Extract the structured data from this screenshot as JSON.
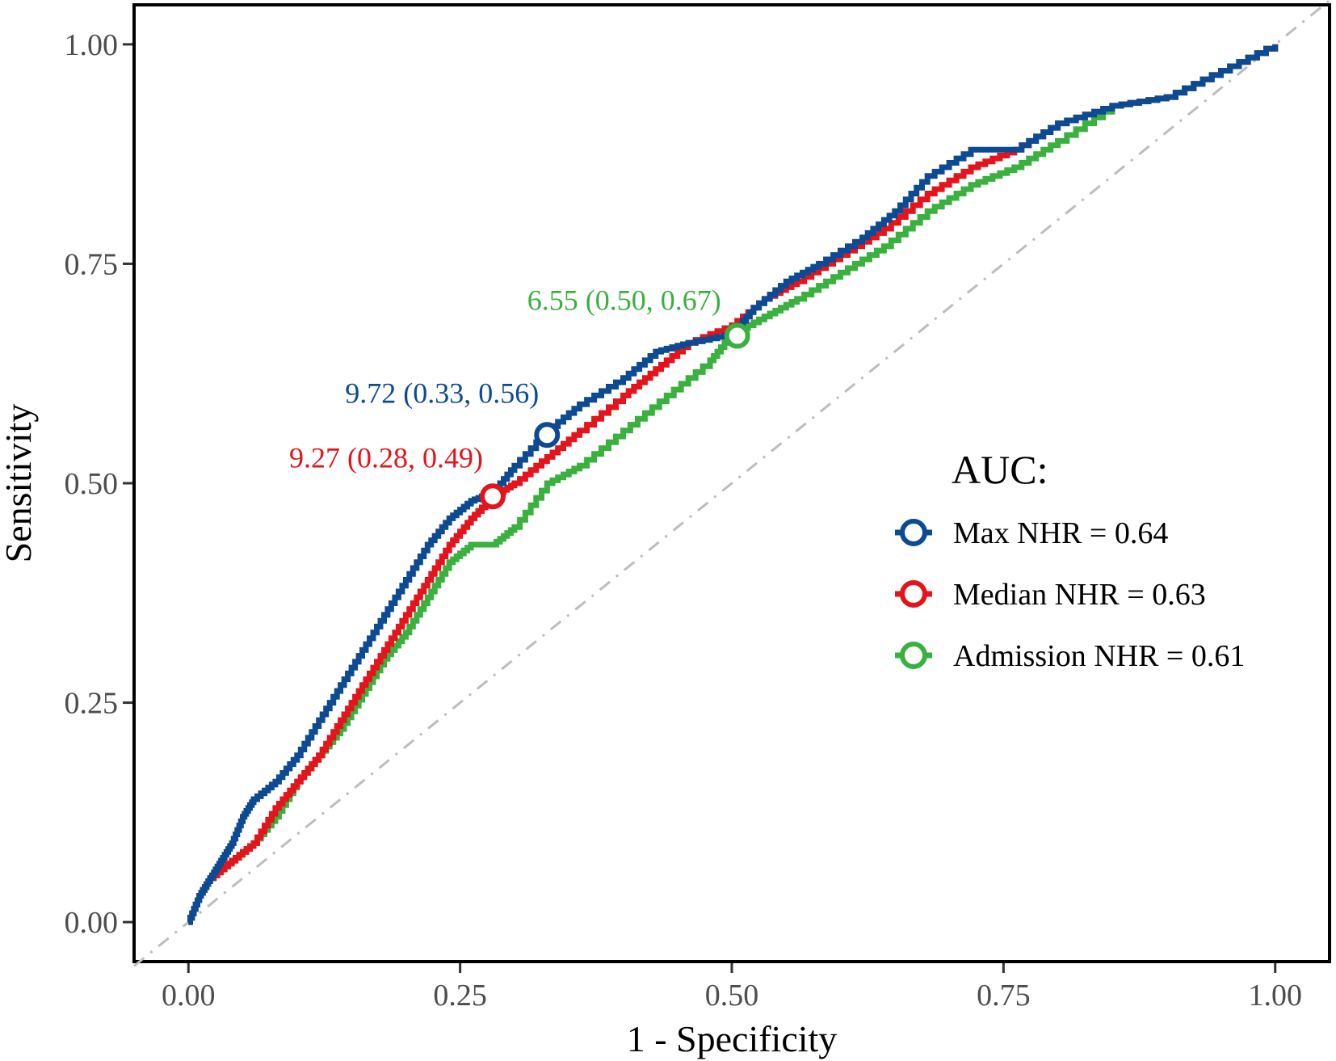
{
  "chart_data": {
    "type": "line",
    "title": "",
    "xlabel": "1 - Specificity",
    "ylabel": "Sensitivity",
    "xlim": [
      -0.05,
      1.05
    ],
    "ylim": [
      -0.045,
      1.045
    ],
    "x_ticks": [
      "0.00",
      "0.25",
      "0.50",
      "0.75",
      "1.00"
    ],
    "y_ticks": [
      "0.00",
      "0.25",
      "0.50",
      "0.75",
      "1.00"
    ],
    "grid": false,
    "reference_line": {
      "type": "diagonal",
      "style": "dash-dot",
      "color": "#bdbdbd"
    },
    "legend": {
      "title": "AUC:",
      "position": "right",
      "entries": [
        {
          "label": "Max NHR = 0.64",
          "color": "#0d4a94"
        },
        {
          "label": "Median NHR = 0.63",
          "color": "#e3141b"
        },
        {
          "label": "Admission NHR = 0.61",
          "color": "#3ab03e"
        }
      ]
    },
    "series": [
      {
        "name": "Max NHR",
        "auc": 0.64,
        "color": "#0d4a94",
        "x": [
          0,
          0.01,
          0.02,
          0.03,
          0.04,
          0.05,
          0.06,
          0.08,
          0.1,
          0.12,
          0.14,
          0.16,
          0.18,
          0.2,
          0.22,
          0.24,
          0.26,
          0.28,
          0.3,
          0.33,
          0.36,
          0.4,
          0.43,
          0.46,
          0.5,
          0.52,
          0.55,
          0.58,
          0.62,
          0.65,
          0.68,
          0.72,
          0.76,
          0.8,
          0.85,
          0.9,
          0.95,
          1.0
        ],
        "y": [
          0,
          0.03,
          0.05,
          0.07,
          0.09,
          0.12,
          0.14,
          0.16,
          0.19,
          0.23,
          0.27,
          0.31,
          0.35,
          0.39,
          0.43,
          0.46,
          0.48,
          0.49,
          0.52,
          0.56,
          0.59,
          0.62,
          0.65,
          0.66,
          0.67,
          0.7,
          0.73,
          0.75,
          0.78,
          0.81,
          0.85,
          0.88,
          0.88,
          0.91,
          0.93,
          0.94,
          0.97,
          1.0
        ],
        "cutoff": {
          "x": 0.33,
          "y": 0.555,
          "label": "9.72 (0.33, 0.56)"
        }
      },
      {
        "name": "Median NHR",
        "auc": 0.63,
        "color": "#e3141b",
        "x": [
          0,
          0.01,
          0.02,
          0.04,
          0.06,
          0.08,
          0.1,
          0.12,
          0.14,
          0.16,
          0.18,
          0.2,
          0.22,
          0.24,
          0.26,
          0.28,
          0.3,
          0.33,
          0.36,
          0.4,
          0.43,
          0.46,
          0.5,
          0.53,
          0.56,
          0.6,
          0.64,
          0.68,
          0.72,
          0.76,
          0.8,
          0.85,
          0.9,
          0.95,
          1.0
        ],
        "y": [
          0,
          0.03,
          0.05,
          0.07,
          0.09,
          0.13,
          0.16,
          0.19,
          0.23,
          0.27,
          0.31,
          0.35,
          0.39,
          0.43,
          0.46,
          0.485,
          0.5,
          0.53,
          0.56,
          0.6,
          0.63,
          0.66,
          0.68,
          0.71,
          0.73,
          0.76,
          0.79,
          0.83,
          0.86,
          0.88,
          0.91,
          0.93,
          0.94,
          0.97,
          1.0
        ],
        "cutoff": {
          "x": 0.28,
          "y": 0.485,
          "label": "9.27 (0.28, 0.49)"
        }
      },
      {
        "name": "Admission NHR",
        "auc": 0.61,
        "color": "#3ab03e",
        "x": [
          0,
          0.01,
          0.02,
          0.04,
          0.06,
          0.08,
          0.1,
          0.12,
          0.14,
          0.16,
          0.18,
          0.2,
          0.22,
          0.24,
          0.26,
          0.28,
          0.3,
          0.33,
          0.36,
          0.4,
          0.44,
          0.48,
          0.5,
          0.53,
          0.56,
          0.6,
          0.64,
          0.68,
          0.72,
          0.76,
          0.8,
          0.85,
          0.9,
          0.95,
          1.0
        ],
        "y": [
          0,
          0.03,
          0.05,
          0.07,
          0.09,
          0.12,
          0.16,
          0.19,
          0.22,
          0.26,
          0.3,
          0.33,
          0.37,
          0.41,
          0.43,
          0.43,
          0.45,
          0.5,
          0.52,
          0.56,
          0.6,
          0.64,
          0.67,
          0.69,
          0.71,
          0.74,
          0.77,
          0.81,
          0.84,
          0.86,
          0.89,
          0.93,
          0.94,
          0.97,
          1.0
        ],
        "cutoff": {
          "x": 0.505,
          "y": 0.668,
          "label": "6.55 (0.50, 0.67)"
        }
      }
    ]
  }
}
